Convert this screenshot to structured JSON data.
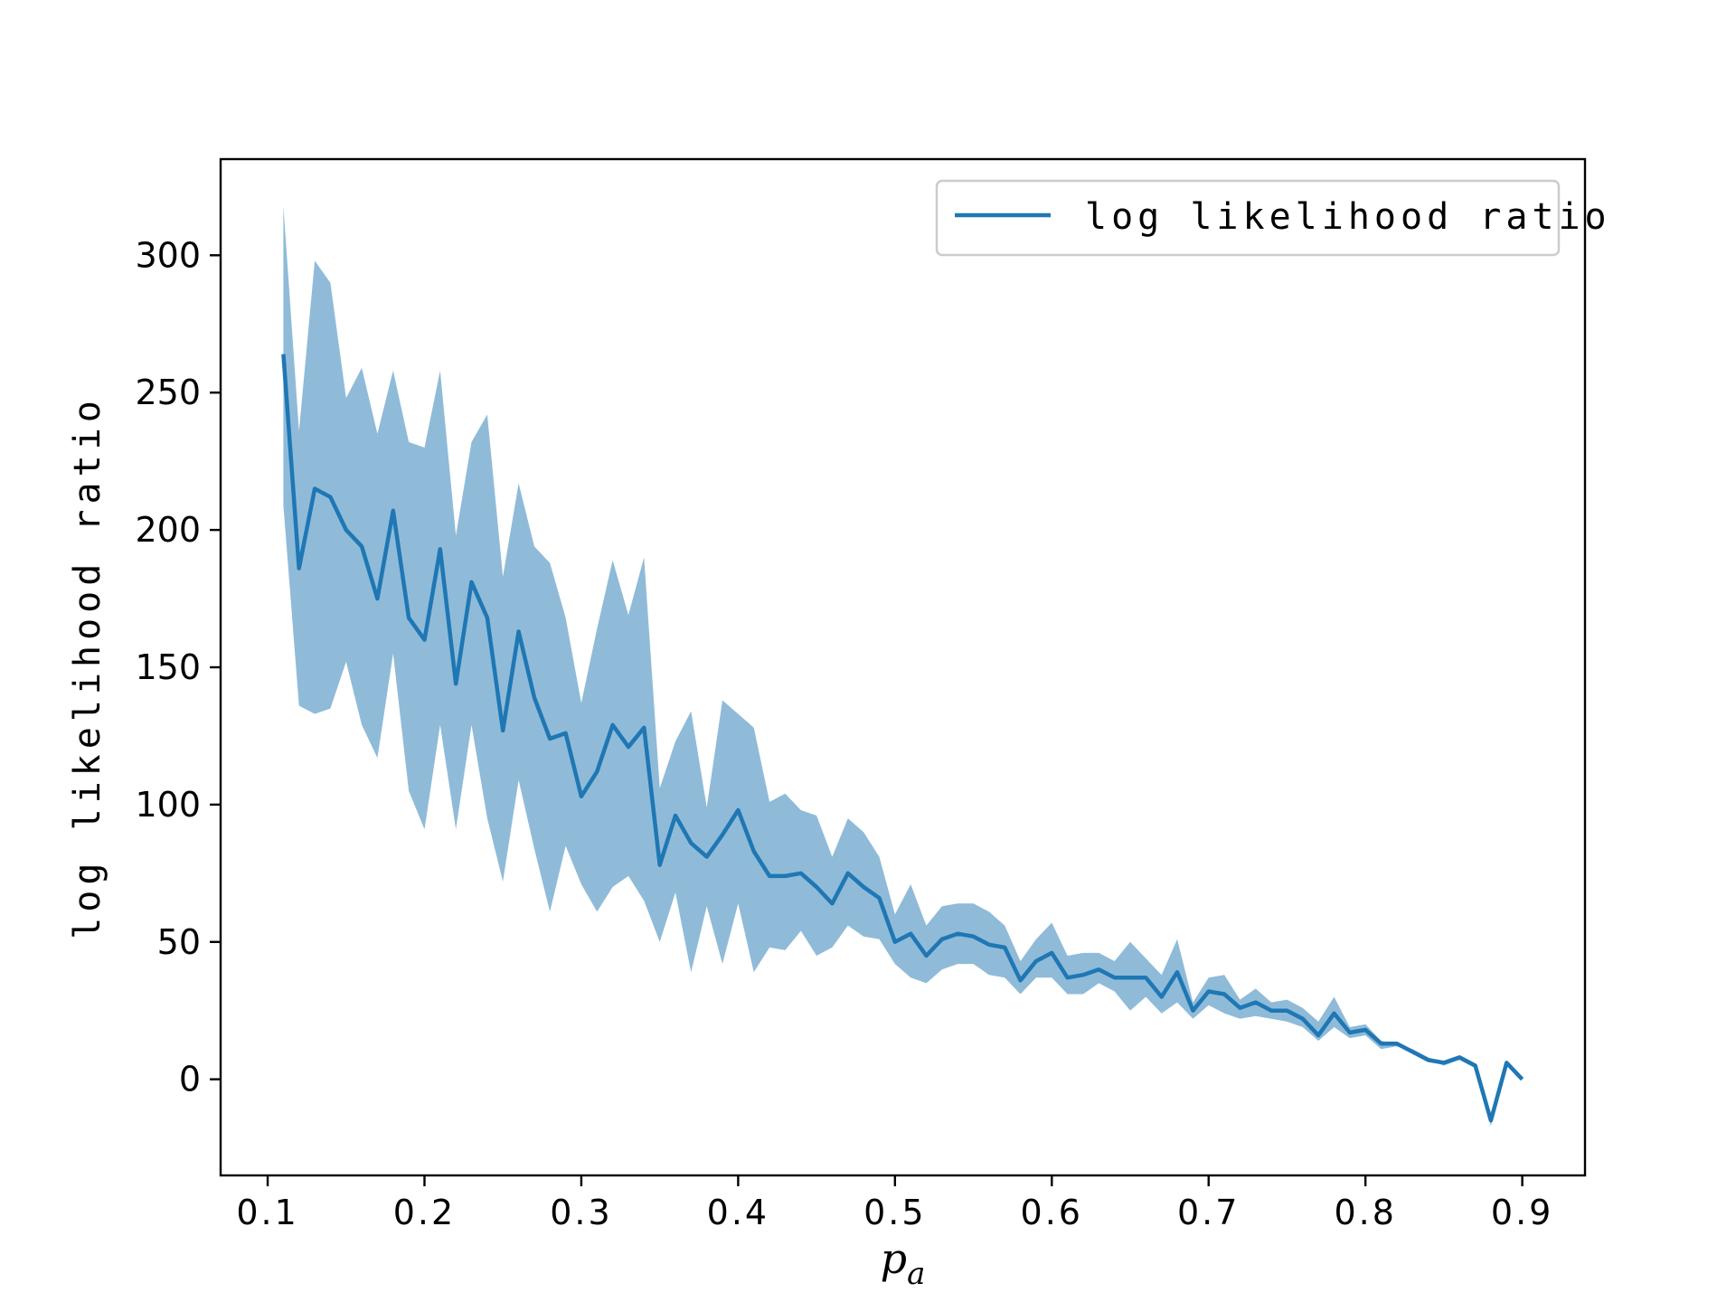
{
  "chart_data": {
    "type": "line",
    "title": "",
    "xlabel_main": "p",
    "xlabel_sub": "a",
    "ylabel": "log likelihood ratio",
    "xlim": [
      0.07,
      0.94
    ],
    "ylim": [
      -35,
      335
    ],
    "xticks": [
      0.1,
      0.2,
      0.3,
      0.4,
      0.5,
      0.6,
      0.7,
      0.8,
      0.9
    ],
    "xtick_labels": [
      "0.1",
      "0.2",
      "0.3",
      "0.4",
      "0.5",
      "0.6",
      "0.7",
      "0.8",
      "0.9"
    ],
    "yticks": [
      0,
      50,
      100,
      150,
      200,
      250,
      300
    ],
    "ytick_labels": [
      "0",
      "50",
      "100",
      "150",
      "200",
      "250",
      "300"
    ],
    "grid": false,
    "legend": {
      "position": "top-right",
      "entries": [
        "log likelihood ratio"
      ]
    },
    "colors": {
      "line": "#1f77b4",
      "band": "#1f77b4"
    },
    "x": [
      0.11,
      0.12,
      0.13,
      0.14,
      0.15,
      0.16,
      0.17,
      0.18,
      0.19,
      0.2,
      0.21,
      0.22,
      0.23,
      0.24,
      0.25,
      0.26,
      0.27,
      0.28,
      0.29,
      0.3,
      0.31,
      0.32,
      0.33,
      0.34,
      0.35,
      0.36,
      0.37,
      0.38,
      0.39,
      0.4,
      0.41,
      0.42,
      0.43,
      0.44,
      0.45,
      0.46,
      0.47,
      0.48,
      0.49,
      0.5,
      0.51,
      0.52,
      0.53,
      0.54,
      0.55,
      0.56,
      0.57,
      0.58,
      0.59,
      0.6,
      0.61,
      0.62,
      0.63,
      0.64,
      0.65,
      0.66,
      0.67,
      0.68,
      0.69,
      0.7,
      0.71,
      0.72,
      0.73,
      0.74,
      0.75,
      0.76,
      0.77,
      0.78,
      0.79,
      0.8,
      0.81,
      0.82,
      0.83,
      0.84,
      0.85,
      0.86,
      0.87,
      0.88,
      0.89,
      0.9
    ],
    "series": [
      {
        "name": "log likelihood ratio",
        "values": [
          264,
          186,
          215,
          212,
          200,
          194,
          175,
          207,
          168,
          160,
          193,
          144,
          181,
          168,
          127,
          163,
          139,
          124,
          126,
          103,
          112,
          129,
          121,
          128,
          78,
          96,
          86,
          81,
          89,
          98,
          83,
          74,
          74,
          75,
          70,
          64,
          75,
          70,
          66,
          50,
          53,
          45,
          51,
          53,
          52,
          49,
          48,
          36,
          43,
          46,
          37,
          38,
          40,
          37,
          37,
          37,
          30,
          39,
          25,
          32,
          31,
          26,
          28,
          25,
          25,
          22,
          16,
          24,
          17,
          18,
          13,
          13,
          10,
          7,
          6,
          8,
          5,
          -15,
          6,
          0
        ],
        "upper": [
          318,
          236,
          298,
          290,
          248,
          259,
          235,
          258,
          232,
          230,
          258,
          198,
          232,
          242,
          183,
          217,
          194,
          188,
          168,
          137,
          164,
          189,
          169,
          190,
          106,
          123,
          134,
          99,
          138,
          133,
          128,
          101,
          104,
          98,
          96,
          81,
          95,
          90,
          81,
          60,
          71,
          56,
          63,
          64,
          64,
          61,
          56,
          43,
          51,
          57,
          45,
          46,
          46,
          43,
          50,
          44,
          38,
          51,
          28,
          37,
          38,
          29,
          33,
          28,
          29,
          26,
          21,
          30,
          19,
          20,
          14,
          13,
          11,
          8,
          6,
          8,
          5,
          -13,
          6,
          0
        ],
        "lower": [
          209,
          136,
          133,
          135,
          152,
          129,
          117,
          155,
          105,
          91,
          129,
          91,
          129,
          95,
          72,
          109,
          84,
          61,
          85,
          71,
          61,
          70,
          74,
          65,
          50,
          68,
          39,
          63,
          42,
          64,
          39,
          48,
          47,
          54,
          45,
          48,
          56,
          52,
          51,
          42,
          37,
          35,
          40,
          42,
          42,
          38,
          37,
          31,
          37,
          37,
          31,
          31,
          35,
          32,
          25,
          30,
          24,
          28,
          22,
          27,
          24,
          22,
          23,
          22,
          21,
          19,
          14,
          19,
          15,
          16,
          11,
          12,
          10,
          7,
          5,
          7,
          4,
          -17,
          5,
          0
        ]
      }
    ]
  }
}
